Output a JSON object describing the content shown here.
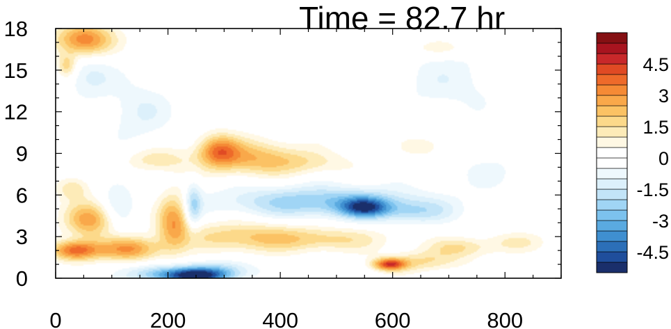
{
  "chart_data": {
    "type": "heatmap",
    "title": "Time = 82.7 hr",
    "xlabel": "",
    "ylabel": "",
    "xlim": [
      0,
      900
    ],
    "ylim": [
      0,
      18
    ],
    "x_ticks": [
      "0",
      "200",
      "400",
      "600",
      "800"
    ],
    "y_ticks": [
      "0",
      "3",
      "6",
      "9",
      "12",
      "15",
      "18"
    ],
    "colorbar": {
      "tick_labels": [
        "4.5",
        "3",
        "1.5",
        "0",
        "-1.5",
        "-3",
        "-4.5"
      ],
      "levels": [
        -5.5,
        -5,
        -4.5,
        -4,
        -3.5,
        -3,
        -2.5,
        -2,
        -1.5,
        -1,
        -0.5,
        0,
        0.5,
        1,
        1.5,
        2,
        2.5,
        3,
        3.5,
        4,
        4.5,
        5,
        5.5
      ],
      "colors": [
        "#1a2f6b",
        "#1f4e9c",
        "#2c6fb8",
        "#3f8fd0",
        "#5aaae0",
        "#7cc2ee",
        "#a0d5f5",
        "#c2e4f8",
        "#dcf0fb",
        "#eef8fd",
        "#ffffff",
        "#ffffff",
        "#fff8e4",
        "#fdebb8",
        "#fcd98a",
        "#fbc264",
        "#f9a84a",
        "#f58a35",
        "#ee6a2a",
        "#e04a24",
        "#c8282a",
        "#a8141f",
        "#851013"
      ]
    },
    "features": [
      {
        "x": 50,
        "y": 17.2,
        "value": 3.5,
        "sx": 35,
        "sy": 0.8
      },
      {
        "x": 20,
        "y": 15.3,
        "value": 1.8,
        "sx": 12,
        "sy": 0.6
      },
      {
        "x": 60,
        "y": 14.5,
        "value": -1.2,
        "sx": 30,
        "sy": 1.0
      },
      {
        "x": 150,
        "y": 12.0,
        "value": -1.0,
        "sx": 40,
        "sy": 1.5
      },
      {
        "x": 700,
        "y": 14.2,
        "value": -0.8,
        "sx": 70,
        "sy": 1.6
      },
      {
        "x": 290,
        "y": 9.2,
        "value": 2.8,
        "sx": 25,
        "sy": 0.8
      },
      {
        "x": 350,
        "y": 8.7,
        "value": 2.2,
        "sx": 60,
        "sy": 0.9
      },
      {
        "x": 450,
        "y": 8.3,
        "value": 1.0,
        "sx": 60,
        "sy": 0.6
      },
      {
        "x": 180,
        "y": 8.5,
        "value": 1.3,
        "sx": 40,
        "sy": 0.6
      },
      {
        "x": 470,
        "y": 5.5,
        "value": -2.5,
        "sx": 120,
        "sy": 0.8
      },
      {
        "x": 550,
        "y": 5.1,
        "value": -3.5,
        "sx": 30,
        "sy": 0.5
      },
      {
        "x": 640,
        "y": 4.8,
        "value": -1.5,
        "sx": 50,
        "sy": 0.6
      },
      {
        "x": 780,
        "y": 7.6,
        "value": -0.6,
        "sx": 50,
        "sy": 1.0
      },
      {
        "x": 30,
        "y": 6.5,
        "value": 1.5,
        "sx": 20,
        "sy": 0.6
      },
      {
        "x": 60,
        "y": 4.2,
        "value": 2.8,
        "sx": 30,
        "sy": 0.9
      },
      {
        "x": 35,
        "y": 2.0,
        "value": 3.8,
        "sx": 30,
        "sy": 0.5
      },
      {
        "x": 130,
        "y": 2.1,
        "value": 3.0,
        "sx": 40,
        "sy": 0.6
      },
      {
        "x": 210,
        "y": 4.2,
        "value": 2.8,
        "sx": 20,
        "sy": 1.4
      },
      {
        "x": 245,
        "y": 5.2,
        "value": -2.0,
        "sx": 10,
        "sy": 1.2
      },
      {
        "x": 330,
        "y": 3.0,
        "value": 1.8,
        "sx": 80,
        "sy": 0.8
      },
      {
        "x": 480,
        "y": 2.8,
        "value": 1.5,
        "sx": 80,
        "sy": 0.6
      },
      {
        "x": 250,
        "y": 0.2,
        "value": -5.0,
        "sx": 40,
        "sy": 0.4
      },
      {
        "x": 180,
        "y": 0.3,
        "value": -2.0,
        "sx": 40,
        "sy": 0.5
      },
      {
        "x": 300,
        "y": 0.6,
        "value": -1.5,
        "sx": 40,
        "sy": 0.5
      },
      {
        "x": 595,
        "y": 1.0,
        "value": 4.0,
        "sx": 20,
        "sy": 0.3
      },
      {
        "x": 650,
        "y": 1.2,
        "value": 1.5,
        "sx": 50,
        "sy": 0.5
      },
      {
        "x": 720,
        "y": 2.2,
        "value": 1.5,
        "sx": 40,
        "sy": 0.5
      },
      {
        "x": 820,
        "y": 2.6,
        "value": 1.0,
        "sx": 40,
        "sy": 0.5
      },
      {
        "x": 660,
        "y": 9.5,
        "value": 0.8,
        "sx": 30,
        "sy": 0.6
      },
      {
        "x": 680,
        "y": 16.6,
        "value": 0.8,
        "sx": 40,
        "sy": 0.4
      },
      {
        "x": 110,
        "y": 5.5,
        "value": -1.0,
        "sx": 20,
        "sy": 1.5
      }
    ]
  }
}
